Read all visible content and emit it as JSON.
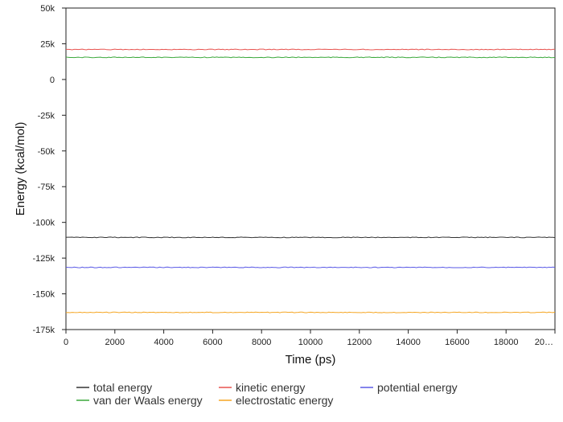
{
  "chart_data": {
    "type": "line",
    "xlabel": "Time (ps)",
    "ylabel": "Energy (kcal/mol)",
    "xlim": [
      0,
      20000
    ],
    "ylim": [
      -175000,
      50000
    ],
    "x_ticks": [
      "0",
      "2000",
      "4000",
      "6000",
      "8000",
      "10000",
      "12000",
      "14000",
      "16000",
      "18000",
      "20…"
    ],
    "y_ticks": [
      "50k",
      "25k",
      "0",
      "-25k",
      "-50k",
      "-75k",
      "-100k",
      "-125k",
      "-150k",
      "-175k"
    ],
    "grid": false,
    "legend_position": "bottom",
    "series": [
      {
        "name": "total energy",
        "color": "#333333",
        "x": [
          0,
          20000
        ],
        "values": [
          -110500,
          -110500
        ]
      },
      {
        "name": "kinetic energy",
        "color": "#e8534f",
        "x": [
          0,
          20000
        ],
        "values": [
          21000,
          21000
        ]
      },
      {
        "name": "potential energy",
        "color": "#5a5ae6",
        "x": [
          0,
          20000
        ],
        "values": [
          -131500,
          -131500
        ]
      },
      {
        "name": "van der Waals energy",
        "color": "#3aa83a",
        "x": [
          0,
          20000
        ],
        "values": [
          15500,
          15500
        ]
      },
      {
        "name": "electrostatic energy",
        "color": "#f5a623",
        "x": [
          0,
          20000
        ],
        "values": [
          -163000,
          -163000
        ]
      }
    ]
  }
}
